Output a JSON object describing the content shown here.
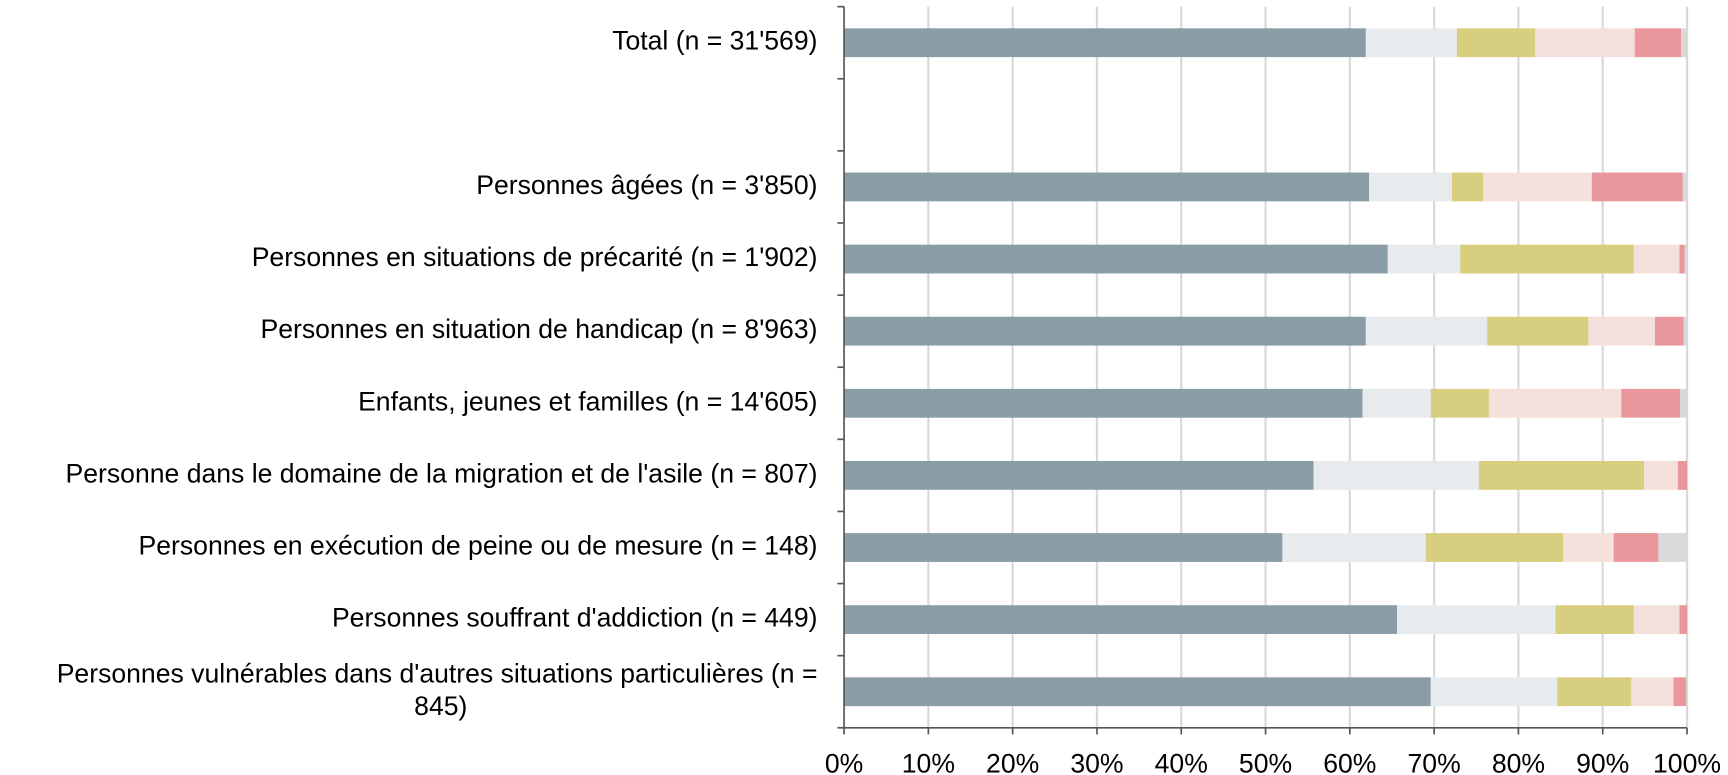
{
  "chart_data": {
    "type": "stacked_barh",
    "categories": [
      "Total (n = 31'569)",
      null,
      "Personnes âgées (n = 3'850)",
      "Personnes en situations de précarité (n = 1'902)",
      "Personnes en situation de handicap (n = 8'963)",
      "Enfants, jeunes et familles (n = 14'605)",
      "Personne dans le domaine de la migration et de l'asile (n = 807)",
      "Personnes en exécution de peine ou de mesure (n = 148)",
      "Personnes souffrant d'addiction (n = 449)",
      "Personnes vulnérables dans d'autres situations particulières (n = 845)"
    ],
    "series": [
      {
        "color": "#8a9ca6",
        "values": [
          61.9,
          null,
          62.3,
          64.5,
          61.9,
          61.5,
          55.7,
          52.0,
          65.6,
          69.6
        ]
      },
      {
        "color": "#e8ebed",
        "values": [
          10.8,
          null,
          9.8,
          8.6,
          14.4,
          8.1,
          19.6,
          17.0,
          18.8,
          15.0
        ]
      },
      {
        "color": "#d8ce80",
        "values": [
          9.3,
          null,
          3.7,
          20.6,
          12.0,
          6.9,
          19.6,
          16.3,
          9.3,
          8.8
        ]
      },
      {
        "color": "#f4e1dc",
        "values": [
          11.8,
          null,
          12.9,
          5.4,
          7.9,
          15.7,
          4.0,
          6.0,
          5.4,
          5.0
        ]
      },
      {
        "color": "#e9969c",
        "values": [
          5.5,
          null,
          10.8,
          0.6,
          3.4,
          7.0,
          1.1,
          5.3,
          0.9,
          1.5
        ]
      },
      {
        "color": "#d9d9d9",
        "values": [
          0.7,
          null,
          0.5,
          0.3,
          0.4,
          0.8,
          0.0,
          3.4,
          0.0,
          0.1
        ]
      }
    ],
    "xlim": [
      0,
      100
    ],
    "xticks": [
      {
        "value": 0,
        "label": "0%"
      },
      {
        "value": 10,
        "label": "10%"
      },
      {
        "value": 20,
        "label": "20%"
      },
      {
        "value": 30,
        "label": "30%"
      },
      {
        "value": 40,
        "label": "40%"
      },
      {
        "value": 50,
        "label": "50%"
      },
      {
        "value": 60,
        "label": "60%"
      },
      {
        "value": 70,
        "label": "70%"
      },
      {
        "value": 80,
        "label": "80%"
      },
      {
        "value": 90,
        "label": "90%"
      },
      {
        "value": 100,
        "label": "100%"
      }
    ],
    "grid": true
  }
}
